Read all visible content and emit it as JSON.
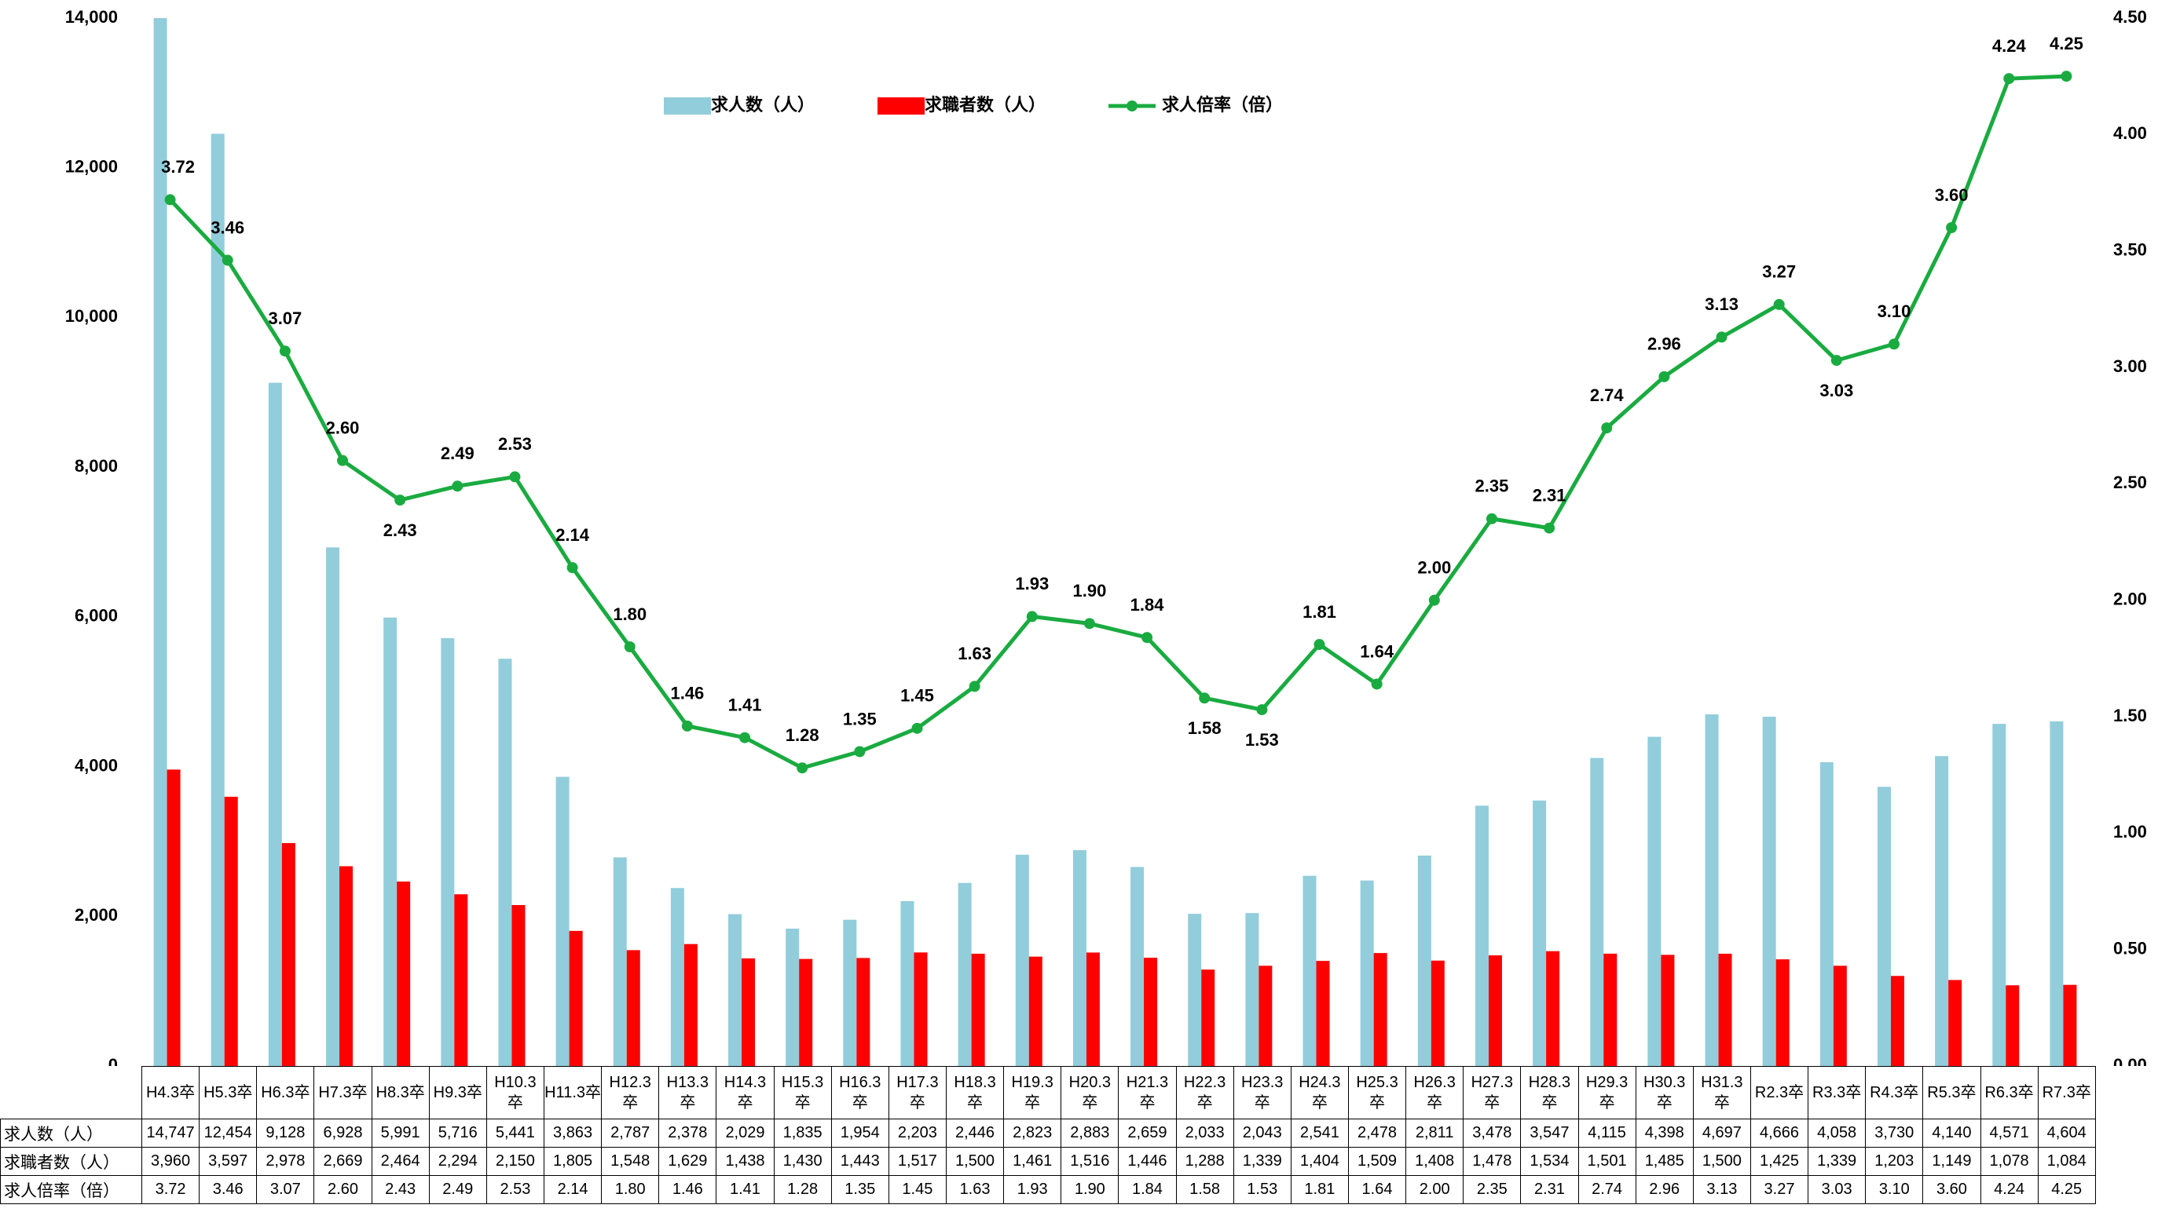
{
  "chart_data": {
    "type": "bar-line",
    "categories": [
      "H4.3卒",
      "H5.3卒",
      "H6.3卒",
      "H7.3卒",
      "H8.3卒",
      "H9.3卒",
      "H10.3卒",
      "H11.3卒",
      "H12.3卒",
      "H13.3卒",
      "H14.3卒",
      "H15.3卒",
      "H16.3卒",
      "H17.3卒",
      "H18.3卒",
      "H19.3卒",
      "H20.3卒",
      "H21.3卒",
      "H22.3卒",
      "H23.3卒",
      "H24.3卒",
      "H25.3卒",
      "H26.3卒",
      "H27.3卒",
      "H28.3卒",
      "H29.3卒",
      "H30.3卒",
      "H31.3卒",
      "R2.3卒",
      "R3.3卒",
      "R4.3卒",
      "R5.3卒",
      "R6.3卒",
      "R7.3卒"
    ],
    "series": [
      {
        "name": "求人数（人）",
        "type": "bar",
        "color": "#92cddc",
        "values": [
          14747,
          12454,
          9128,
          6928,
          5991,
          5716,
          5441,
          3863,
          2787,
          2378,
          2029,
          1835,
          1954,
          2203,
          2446,
          2823,
          2883,
          2659,
          2033,
          2043,
          2541,
          2478,
          2811,
          3478,
          3547,
          4115,
          4398,
          4697,
          4666,
          4058,
          3730,
          4140,
          4571,
          4604
        ],
        "value_labels": [
          "14,747",
          "12,454",
          "9,128",
          "6,928",
          "5,991",
          "5,716",
          "5,441",
          "3,863",
          "2,787",
          "2,378",
          "2,029",
          "1,835",
          "1,954",
          "2,203",
          "2,446",
          "2,823",
          "2,883",
          "2,659",
          "2,033",
          "2,043",
          "2,541",
          "2,478",
          "2,811",
          "3,478",
          "3,547",
          "4,115",
          "4,398",
          "4,697",
          "4,666",
          "4,058",
          "3,730",
          "4,140",
          "4,571",
          "4,604"
        ]
      },
      {
        "name": "求職者数（人）",
        "type": "bar",
        "color": "#ff0000",
        "values": [
          3960,
          3597,
          2978,
          2669,
          2464,
          2294,
          2150,
          1805,
          1548,
          1629,
          1438,
          1430,
          1443,
          1517,
          1500,
          1461,
          1516,
          1446,
          1288,
          1339,
          1404,
          1509,
          1408,
          1478,
          1534,
          1501,
          1485,
          1500,
          1425,
          1339,
          1203,
          1149,
          1078,
          1084
        ],
        "value_labels": [
          "3,960",
          "3,597",
          "2,978",
          "2,669",
          "2,464",
          "2,294",
          "2,150",
          "1,805",
          "1,548",
          "1,629",
          "1,438",
          "1,430",
          "1,443",
          "1,517",
          "1,500",
          "1,461",
          "1,516",
          "1,446",
          "1,288",
          "1,339",
          "1,404",
          "1,509",
          "1,408",
          "1,478",
          "1,534",
          "1,501",
          "1,485",
          "1,500",
          "1,425",
          "1,339",
          "1,203",
          "1,149",
          "1,078",
          "1,084"
        ]
      },
      {
        "name": "求人倍率（倍）",
        "type": "line",
        "axis": "y2",
        "color": "#1aab40",
        "values": [
          3.72,
          3.46,
          3.07,
          2.6,
          2.43,
          2.49,
          2.53,
          2.14,
          1.8,
          1.46,
          1.41,
          1.28,
          1.35,
          1.45,
          1.63,
          1.93,
          1.9,
          1.84,
          1.58,
          1.53,
          1.81,
          1.64,
          2.0,
          2.35,
          2.31,
          2.74,
          2.96,
          3.13,
          3.27,
          3.03,
          3.1,
          3.6,
          4.24,
          4.25
        ],
        "value_labels": [
          "3.72",
          "3.46",
          "3.07",
          "2.60",
          "2.43",
          "2.49",
          "2.53",
          "2.14",
          "1.80",
          "1.46",
          "1.41",
          "1.28",
          "1.35",
          "1.45",
          "1.63",
          "1.93",
          "1.90",
          "1.84",
          "1.58",
          "1.53",
          "1.81",
          "1.64",
          "2.00",
          "2.35",
          "2.31",
          "2.74",
          "2.96",
          "3.13",
          "3.27",
          "3.03",
          "3.10",
          "3.60",
          "4.24",
          "4.25"
        ]
      }
    ],
    "ylim": [
      0,
      14000
    ],
    "yticks": [
      0,
      {
        "value": 2000,
        "label": "2,000"
      },
      {
        "value": 4000,
        "label": "4,000"
      },
      {
        "value": 6000,
        "label": "6,000"
      },
      {
        "value": 8000,
        "label": "8,000"
      },
      {
        "value": 10000,
        "label": "10,000"
      },
      {
        "value": 12000,
        "label": "12,000"
      },
      {
        "value": 14000,
        "label": "14,000"
      }
    ],
    "y2lim": [
      0,
      4.5
    ],
    "y2ticks": [
      {
        "value": 0,
        "label": "0.00"
      },
      {
        "value": 0.5,
        "label": "0.50"
      },
      {
        "value": 1,
        "label": "1.00"
      },
      {
        "value": 1.5,
        "label": "1.50"
      },
      {
        "value": 2,
        "label": "2.00"
      },
      {
        "value": 2.5,
        "label": "2.50"
      },
      {
        "value": 3,
        "label": "3.00"
      },
      {
        "value": 3.5,
        "label": "3.50"
      },
      {
        "value": 4,
        "label": "4.00"
      },
      {
        "value": 4.5,
        "label": "4.50"
      }
    ],
    "grid": false,
    "legend": "top"
  }
}
